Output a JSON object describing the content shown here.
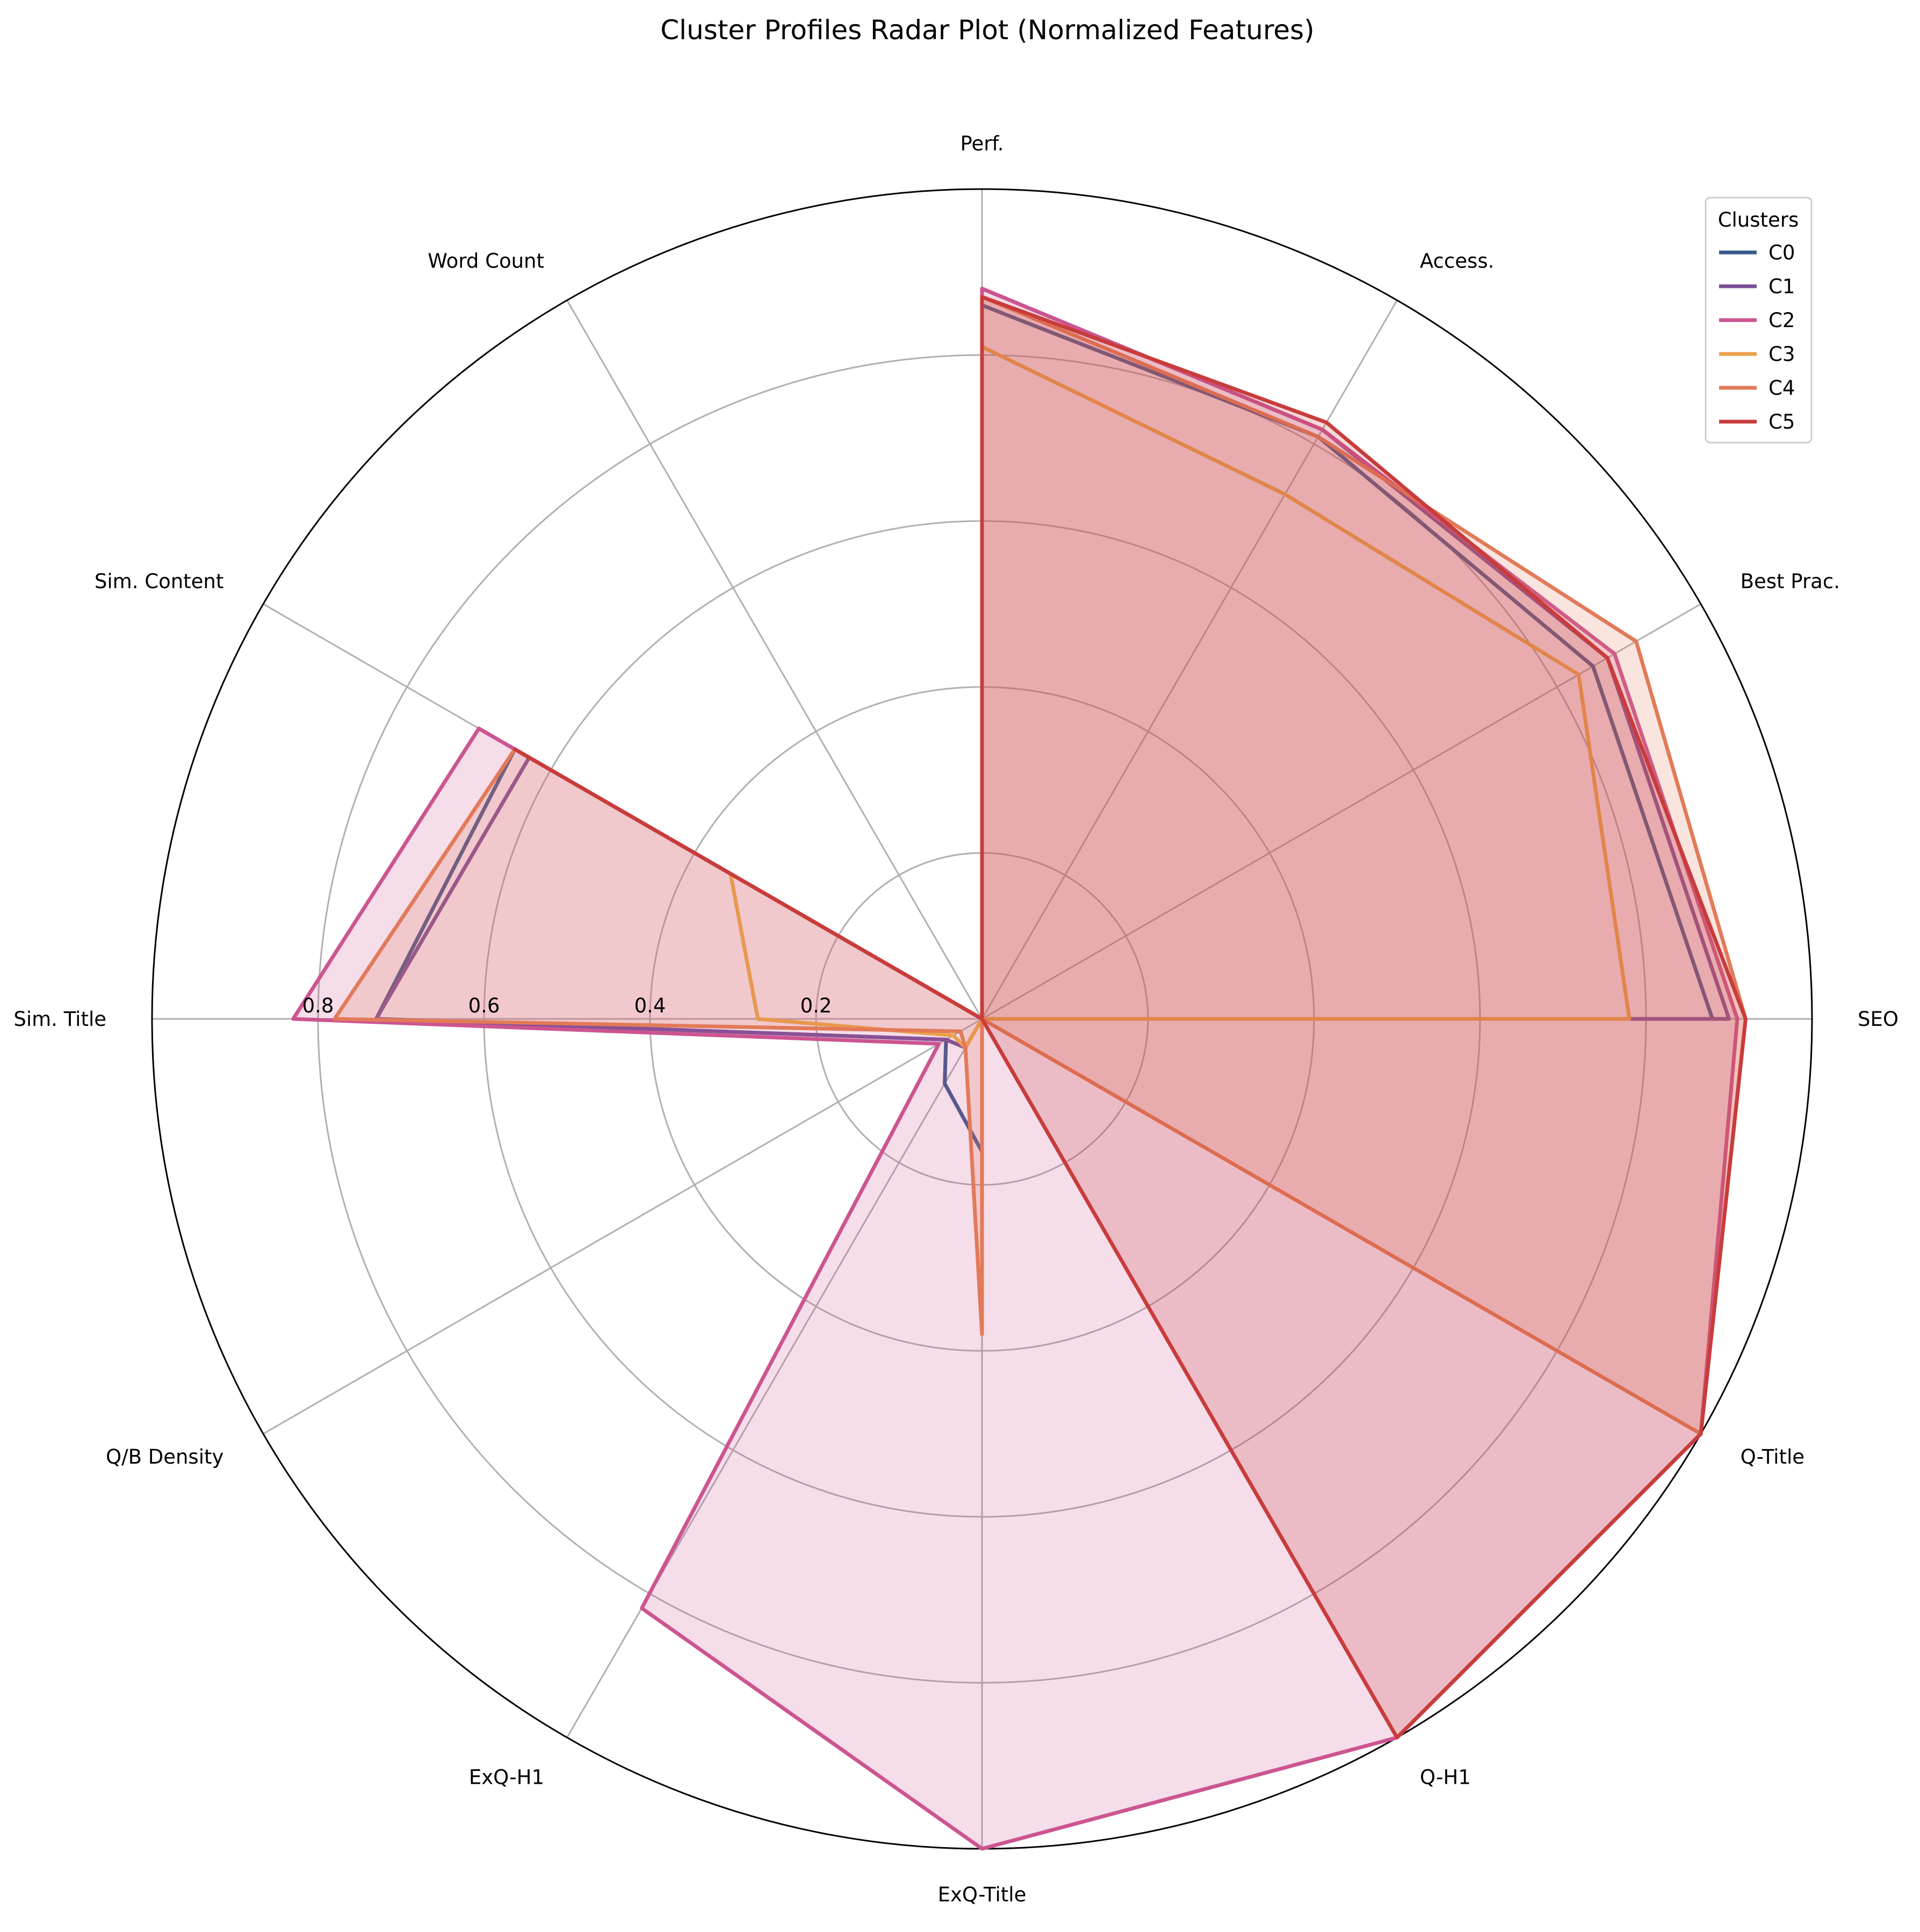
{
  "chart_data": {
    "type": "radar",
    "title": "Cluster Profiles Radar Plot (Normalized Features)",
    "axes": [
      "Perf.",
      "Access.",
      "Best Prac.",
      "SEO",
      "Q-Title",
      "Q-H1",
      "ExQ-Title",
      "ExQ-H1",
      "Q/B Density",
      "Sim. Title",
      "Sim. Content",
      "Word Count"
    ],
    "rlim": [
      0,
      1
    ],
    "rticks": [
      0.2,
      0.4,
      0.6,
      0.8
    ],
    "rtick_labels": [
      "0.2",
      "0.4",
      "0.6",
      "0.8"
    ],
    "grid": true,
    "legend": {
      "title": "Clusters",
      "position": "top-right"
    },
    "series": [
      {
        "name": "C0",
        "color": "#3a5a8c",
        "fill": false,
        "values": [
          0.86,
          0.81,
          0.85,
          0.88,
          0.0,
          0.0,
          0.16,
          0.09,
          0.05,
          0.73,
          0.65,
          0.0
        ]
      },
      {
        "name": "C1",
        "color": "#7a4f96",
        "fill": false,
        "values": [
          0.88,
          0.82,
          0.87,
          0.9,
          0.0,
          0.0,
          0.0,
          0.04,
          0.05,
          0.73,
          0.63,
          0.0
        ]
      },
      {
        "name": "C2",
        "color": "#cc5590",
        "fill": true,
        "values": [
          0.88,
          0.82,
          0.88,
          0.91,
          1.0,
          1.0,
          1.0,
          0.82,
          0.06,
          0.83,
          0.7,
          0.0
        ]
      },
      {
        "name": "C3",
        "color": "#eaa14c",
        "fill": false,
        "values": [
          0.81,
          0.73,
          0.83,
          0.78,
          0.0,
          0.0,
          0.0,
          0.04,
          0.04,
          0.27,
          0.35,
          0.0
        ]
      },
      {
        "name": "C4",
        "color": "#e27a58",
        "fill": true,
        "values": [
          0.87,
          0.81,
          0.91,
          0.92,
          1.0,
          0.0,
          0.38,
          0.04,
          0.03,
          0.78,
          0.65,
          0.0
        ]
      },
      {
        "name": "C5",
        "color": "#c93c3c",
        "fill": true,
        "values": [
          0.87,
          0.83,
          0.87,
          0.92,
          1.0,
          1.0,
          0.0,
          0.0,
          0.0,
          0.0,
          0.65,
          0.0
        ]
      }
    ]
  }
}
